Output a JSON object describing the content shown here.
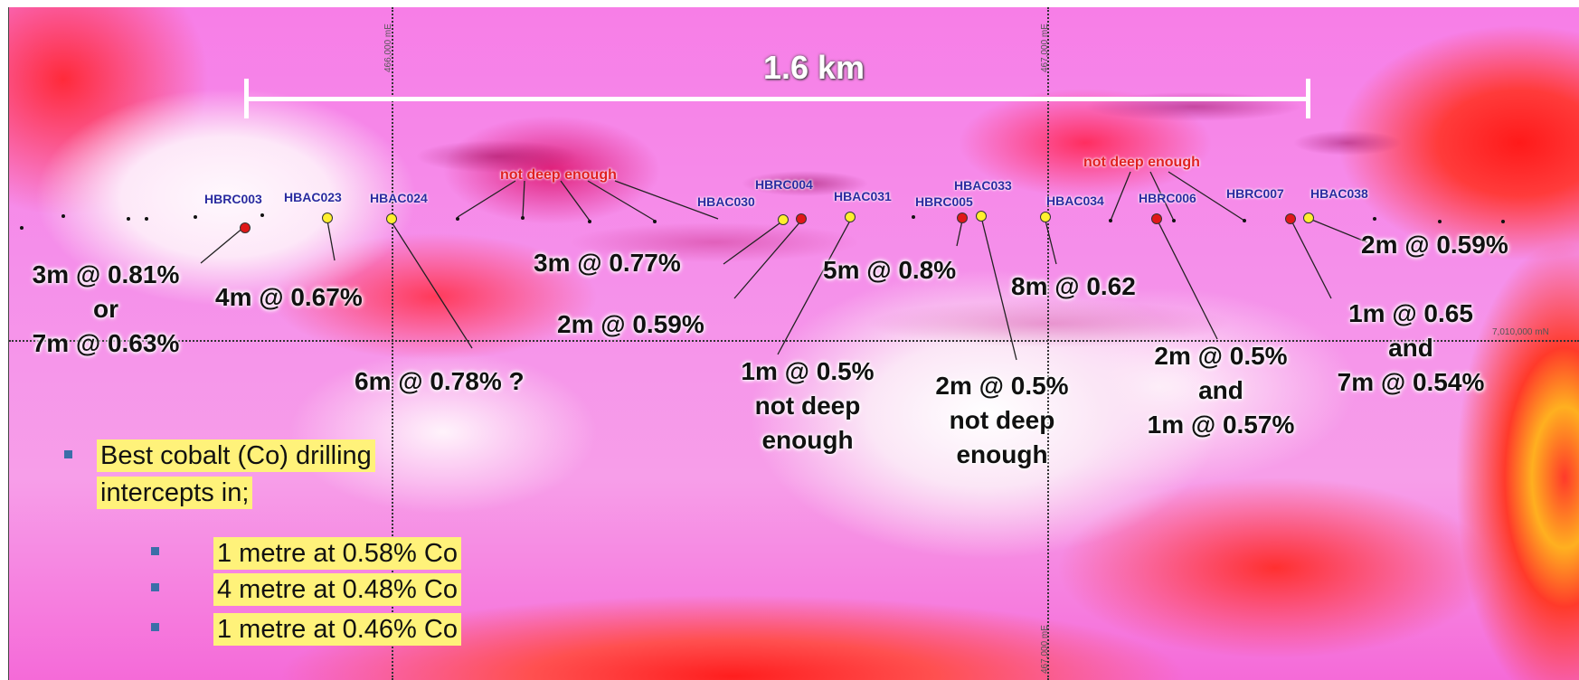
{
  "scale_label": "1.6 km",
  "grid_labels": {
    "e466": "466,000 mE",
    "e467_top": "467,000 mE",
    "e467_bottom": "467,000 mE",
    "n_line": "7,010,000 mN"
  },
  "collars": [
    {
      "id": "HBRC003",
      "color": "red"
    },
    {
      "id": "HBAC023",
      "color": "yellow"
    },
    {
      "id": "HBAC024",
      "color": "yellow"
    },
    {
      "id": "HBAC030",
      "color": "yellow"
    },
    {
      "id": "HBRC004",
      "color": "red"
    },
    {
      "id": "HBAC031",
      "color": "yellow"
    },
    {
      "id": "HBAC033",
      "color": "yellow"
    },
    {
      "id": "HBRC005",
      "color": "red"
    },
    {
      "id": "HBAC034",
      "color": "yellow"
    },
    {
      "id": "HBRC006",
      "color": "red"
    },
    {
      "id": "HBRC007",
      "color": "red"
    },
    {
      "id": "HBAC038",
      "color": "yellow"
    }
  ],
  "notes": [
    "not deep enough",
    "not deep enough"
  ],
  "intercepts": {
    "hbrc003": [
      "3m @ 0.81%",
      "or",
      "7m @ 0.63%"
    ],
    "hbac023": "4m @ 0.67%",
    "hbac024": "6m @ 0.78% ?",
    "hbac030": "3m @ 0.77%",
    "hbrc004": "2m @ 0.59%",
    "hbac031": [
      "1m @ 0.5%",
      "not deep",
      "enough"
    ],
    "hbrc005": "5m @ 0.8%",
    "hbac033": [
      "2m @ 0.5%",
      "not deep",
      "enough"
    ],
    "hbac034": "8m @ 0.62",
    "hbrc006": [
      "2m @ 0.5%",
      "and",
      "1m @ 0.57%"
    ],
    "hbrc007": [
      "1m @ 0.65",
      "and",
      "7m @ 0.54%"
    ],
    "hbac038": "2m @ 0.59%"
  },
  "legend": {
    "heading_line1": "Best cobalt (Co) drilling",
    "heading_line2": "intercepts in;",
    "items": [
      "1 metre at 0.58% Co",
      "4 metre at 0.48% Co",
      "1 metre at 0.46% Co"
    ]
  },
  "colors": {
    "red_hole": "#e01818",
    "yellow_hole": "#ffef2e",
    "collar_text": "#2a2aa0",
    "note_text": "#e02020",
    "highlight": "#fff27a",
    "bullet": "#3b6ea8"
  }
}
